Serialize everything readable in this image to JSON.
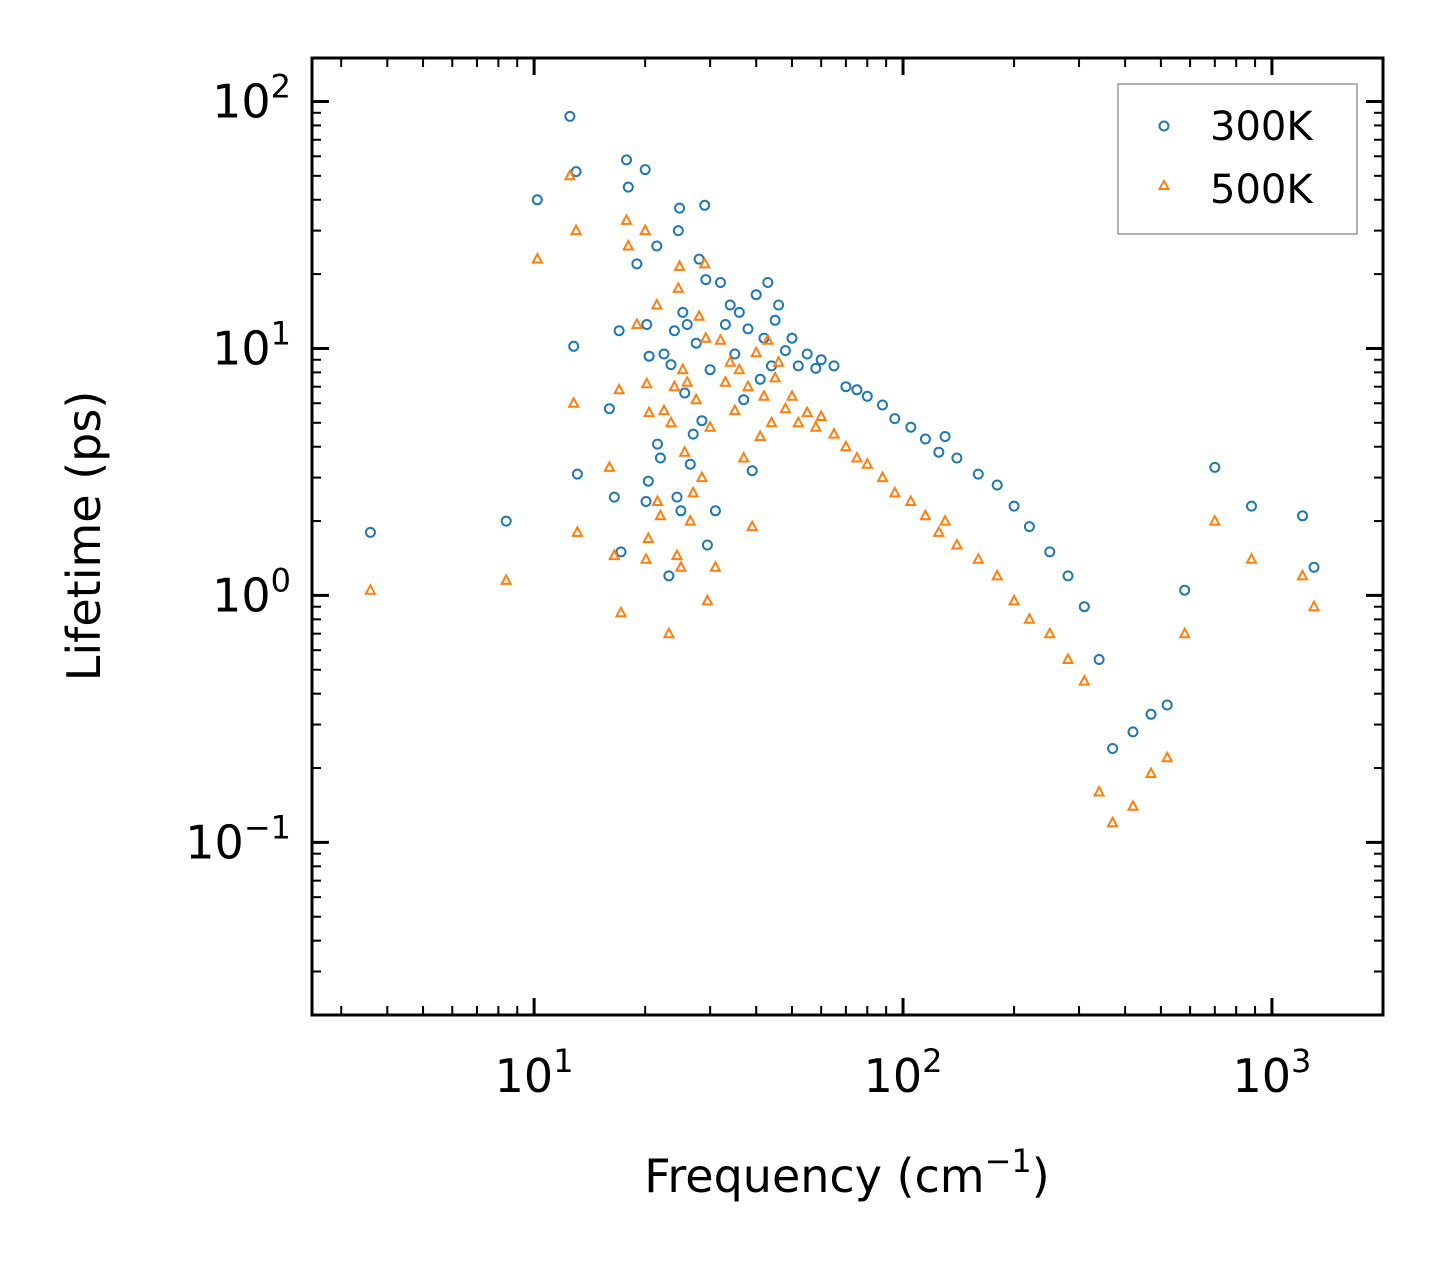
{
  "chart_data": {
    "type": "scatter",
    "xscale": "log",
    "yscale": "log",
    "xlim": [
      2.5,
      2000
    ],
    "ylim": [
      0.02,
      150
    ],
    "xlabel": {
      "main": "Frequency (cm",
      "sup": "−1",
      "close": ")"
    },
    "ylabel": "Lifetime (ps)",
    "xticks": [
      {
        "base": "10",
        "exp": "1",
        "value": 10
      },
      {
        "base": "10",
        "exp": "2",
        "value": 100
      },
      {
        "base": "10",
        "exp": "3",
        "value": 1000
      }
    ],
    "yticks": [
      {
        "base": "10",
        "exp": "−1",
        "value": 0.1
      },
      {
        "base": "10",
        "exp": "0",
        "value": 1
      },
      {
        "base": "10",
        "exp": "1",
        "value": 10
      },
      {
        "base": "10",
        "exp": "2",
        "value": 100
      }
    ],
    "legend": {
      "location": "upper-right"
    },
    "series": [
      {
        "name": "300K",
        "marker": "circle",
        "color": "#1f77b4",
        "points": [
          [
            3.6,
            1.8
          ],
          [
            8.4,
            2.0
          ],
          [
            10.2,
            40
          ],
          [
            12.5,
            87
          ],
          [
            13.0,
            52
          ],
          [
            12.8,
            10.2
          ],
          [
            13.1,
            3.1
          ],
          [
            16.0,
            5.7
          ],
          [
            16.5,
            2.5
          ],
          [
            17.0,
            11.8
          ],
          [
            17.2,
            1.5
          ],
          [
            17.8,
            58
          ],
          [
            18.0,
            45
          ],
          [
            19.0,
            22
          ],
          [
            20.0,
            53
          ],
          [
            20.2,
            12.5
          ],
          [
            20.5,
            9.3
          ],
          [
            20.4,
            2.9
          ],
          [
            20.1,
            2.4
          ],
          [
            21.5,
            26
          ],
          [
            21.6,
            4.1
          ],
          [
            22.0,
            3.6
          ],
          [
            22.5,
            9.5
          ],
          [
            23.2,
            1.2
          ],
          [
            23.5,
            8.6
          ],
          [
            24.0,
            11.8
          ],
          [
            24.4,
            2.5
          ],
          [
            24.6,
            30
          ],
          [
            24.8,
            37
          ],
          [
            25.0,
            2.2
          ],
          [
            25.3,
            14
          ],
          [
            25.6,
            6.6
          ],
          [
            26.0,
            12.5
          ],
          [
            26.5,
            3.4
          ],
          [
            27.0,
            4.5
          ],
          [
            27.5,
            10.5
          ],
          [
            28.0,
            23
          ],
          [
            28.5,
            5.1
          ],
          [
            29.0,
            38
          ],
          [
            29.2,
            19
          ],
          [
            29.5,
            1.6
          ],
          [
            30.0,
            8.2
          ],
          [
            31.0,
            2.2
          ],
          [
            32.0,
            18.5
          ],
          [
            33.0,
            12.5
          ],
          [
            34.0,
            15
          ],
          [
            35.0,
            9.5
          ],
          [
            36.0,
            14
          ],
          [
            37.0,
            6.2
          ],
          [
            38.0,
            12
          ],
          [
            39.0,
            3.2
          ],
          [
            40.0,
            16.5
          ],
          [
            41.0,
            7.5
          ],
          [
            42.0,
            11
          ],
          [
            43.0,
            18.5
          ],
          [
            44.0,
            8.5
          ],
          [
            45.0,
            13
          ],
          [
            46.0,
            15
          ],
          [
            48.0,
            9.8
          ],
          [
            50.0,
            11
          ],
          [
            52.0,
            8.5
          ],
          [
            55.0,
            9.5
          ],
          [
            58.0,
            8.3
          ],
          [
            60.0,
            9.0
          ],
          [
            65.0,
            8.5
          ],
          [
            70.0,
            7.0
          ],
          [
            75.0,
            6.8
          ],
          [
            80.0,
            6.4
          ],
          [
            88.0,
            5.9
          ],
          [
            95.0,
            5.2
          ],
          [
            105.0,
            4.8
          ],
          [
            115.0,
            4.3
          ],
          [
            125.0,
            3.8
          ],
          [
            130.0,
            4.4
          ],
          [
            140.0,
            3.6
          ],
          [
            160.0,
            3.1
          ],
          [
            180.0,
            2.8
          ],
          [
            200.0,
            2.3
          ],
          [
            220.0,
            1.9
          ],
          [
            250.0,
            1.5
          ],
          [
            280.0,
            1.2
          ],
          [
            310.0,
            0.9
          ],
          [
            340.0,
            0.55
          ],
          [
            370.0,
            0.24
          ],
          [
            420.0,
            0.28
          ],
          [
            470.0,
            0.33
          ],
          [
            520.0,
            0.36
          ],
          [
            580.0,
            1.05
          ],
          [
            700.0,
            3.3
          ],
          [
            880.0,
            2.3
          ],
          [
            1210.0,
            2.1
          ],
          [
            1300.0,
            1.3
          ]
        ]
      },
      {
        "name": "500K",
        "marker": "triangle",
        "color": "#ff7f0e",
        "points": [
          [
            3.6,
            1.05
          ],
          [
            8.4,
            1.15
          ],
          [
            10.2,
            23
          ],
          [
            12.5,
            50
          ],
          [
            13.0,
            30
          ],
          [
            12.8,
            6.0
          ],
          [
            13.1,
            1.8
          ],
          [
            16.0,
            3.3
          ],
          [
            16.5,
            1.45
          ],
          [
            17.0,
            6.8
          ],
          [
            17.2,
            0.85
          ],
          [
            17.8,
            33
          ],
          [
            18.0,
            26
          ],
          [
            19.0,
            12.5
          ],
          [
            20.0,
            30
          ],
          [
            20.2,
            7.2
          ],
          [
            20.5,
            5.5
          ],
          [
            20.4,
            1.7
          ],
          [
            20.1,
            1.4
          ],
          [
            21.5,
            15
          ],
          [
            21.6,
            2.4
          ],
          [
            22.0,
            2.1
          ],
          [
            22.5,
            5.6
          ],
          [
            23.2,
            0.7
          ],
          [
            23.5,
            5.0
          ],
          [
            24.0,
            7.0
          ],
          [
            24.4,
            1.45
          ],
          [
            24.6,
            17.5
          ],
          [
            24.8,
            21.5
          ],
          [
            25.0,
            1.3
          ],
          [
            25.3,
            8.2
          ],
          [
            25.6,
            3.8
          ],
          [
            26.0,
            7.3
          ],
          [
            26.5,
            2.0
          ],
          [
            27.0,
            2.6
          ],
          [
            27.5,
            6.2
          ],
          [
            28.0,
            13.5
          ],
          [
            28.5,
            3.0
          ],
          [
            29.0,
            22
          ],
          [
            29.2,
            11
          ],
          [
            29.5,
            0.95
          ],
          [
            30.0,
            4.8
          ],
          [
            31.0,
            1.3
          ],
          [
            32.0,
            10.8
          ],
          [
            33.0,
            7.3
          ],
          [
            34.0,
            8.8
          ],
          [
            35.0,
            5.6
          ],
          [
            36.0,
            8.2
          ],
          [
            37.0,
            3.6
          ],
          [
            38.0,
            7.0
          ],
          [
            39.0,
            1.9
          ],
          [
            40.0,
            9.6
          ],
          [
            41.0,
            4.4
          ],
          [
            42.0,
            6.4
          ],
          [
            43.0,
            10.8
          ],
          [
            44.0,
            5.0
          ],
          [
            45.0,
            7.6
          ],
          [
            46.0,
            8.8
          ],
          [
            48.0,
            5.7
          ],
          [
            50.0,
            6.4
          ],
          [
            52.0,
            5.0
          ],
          [
            55.0,
            5.5
          ],
          [
            58.0,
            4.8
          ],
          [
            60.0,
            5.3
          ],
          [
            65.0,
            4.5
          ],
          [
            70.0,
            4.0
          ],
          [
            75.0,
            3.6
          ],
          [
            80.0,
            3.4
          ],
          [
            88.0,
            3.0
          ],
          [
            95.0,
            2.6
          ],
          [
            105.0,
            2.4
          ],
          [
            115.0,
            2.1
          ],
          [
            125.0,
            1.8
          ],
          [
            130.0,
            2.0
          ],
          [
            140.0,
            1.6
          ],
          [
            160.0,
            1.4
          ],
          [
            180.0,
            1.2
          ],
          [
            200.0,
            0.95
          ],
          [
            220.0,
            0.8
          ],
          [
            250.0,
            0.7
          ],
          [
            280.0,
            0.55
          ],
          [
            310.0,
            0.45
          ],
          [
            340.0,
            0.16
          ],
          [
            370.0,
            0.12
          ],
          [
            420.0,
            0.14
          ],
          [
            470.0,
            0.19
          ],
          [
            520.0,
            0.22
          ],
          [
            580.0,
            0.7
          ],
          [
            700.0,
            2.0
          ],
          [
            880.0,
            1.4
          ],
          [
            1210.0,
            1.2
          ],
          [
            1300.0,
            0.9
          ]
        ]
      }
    ]
  }
}
